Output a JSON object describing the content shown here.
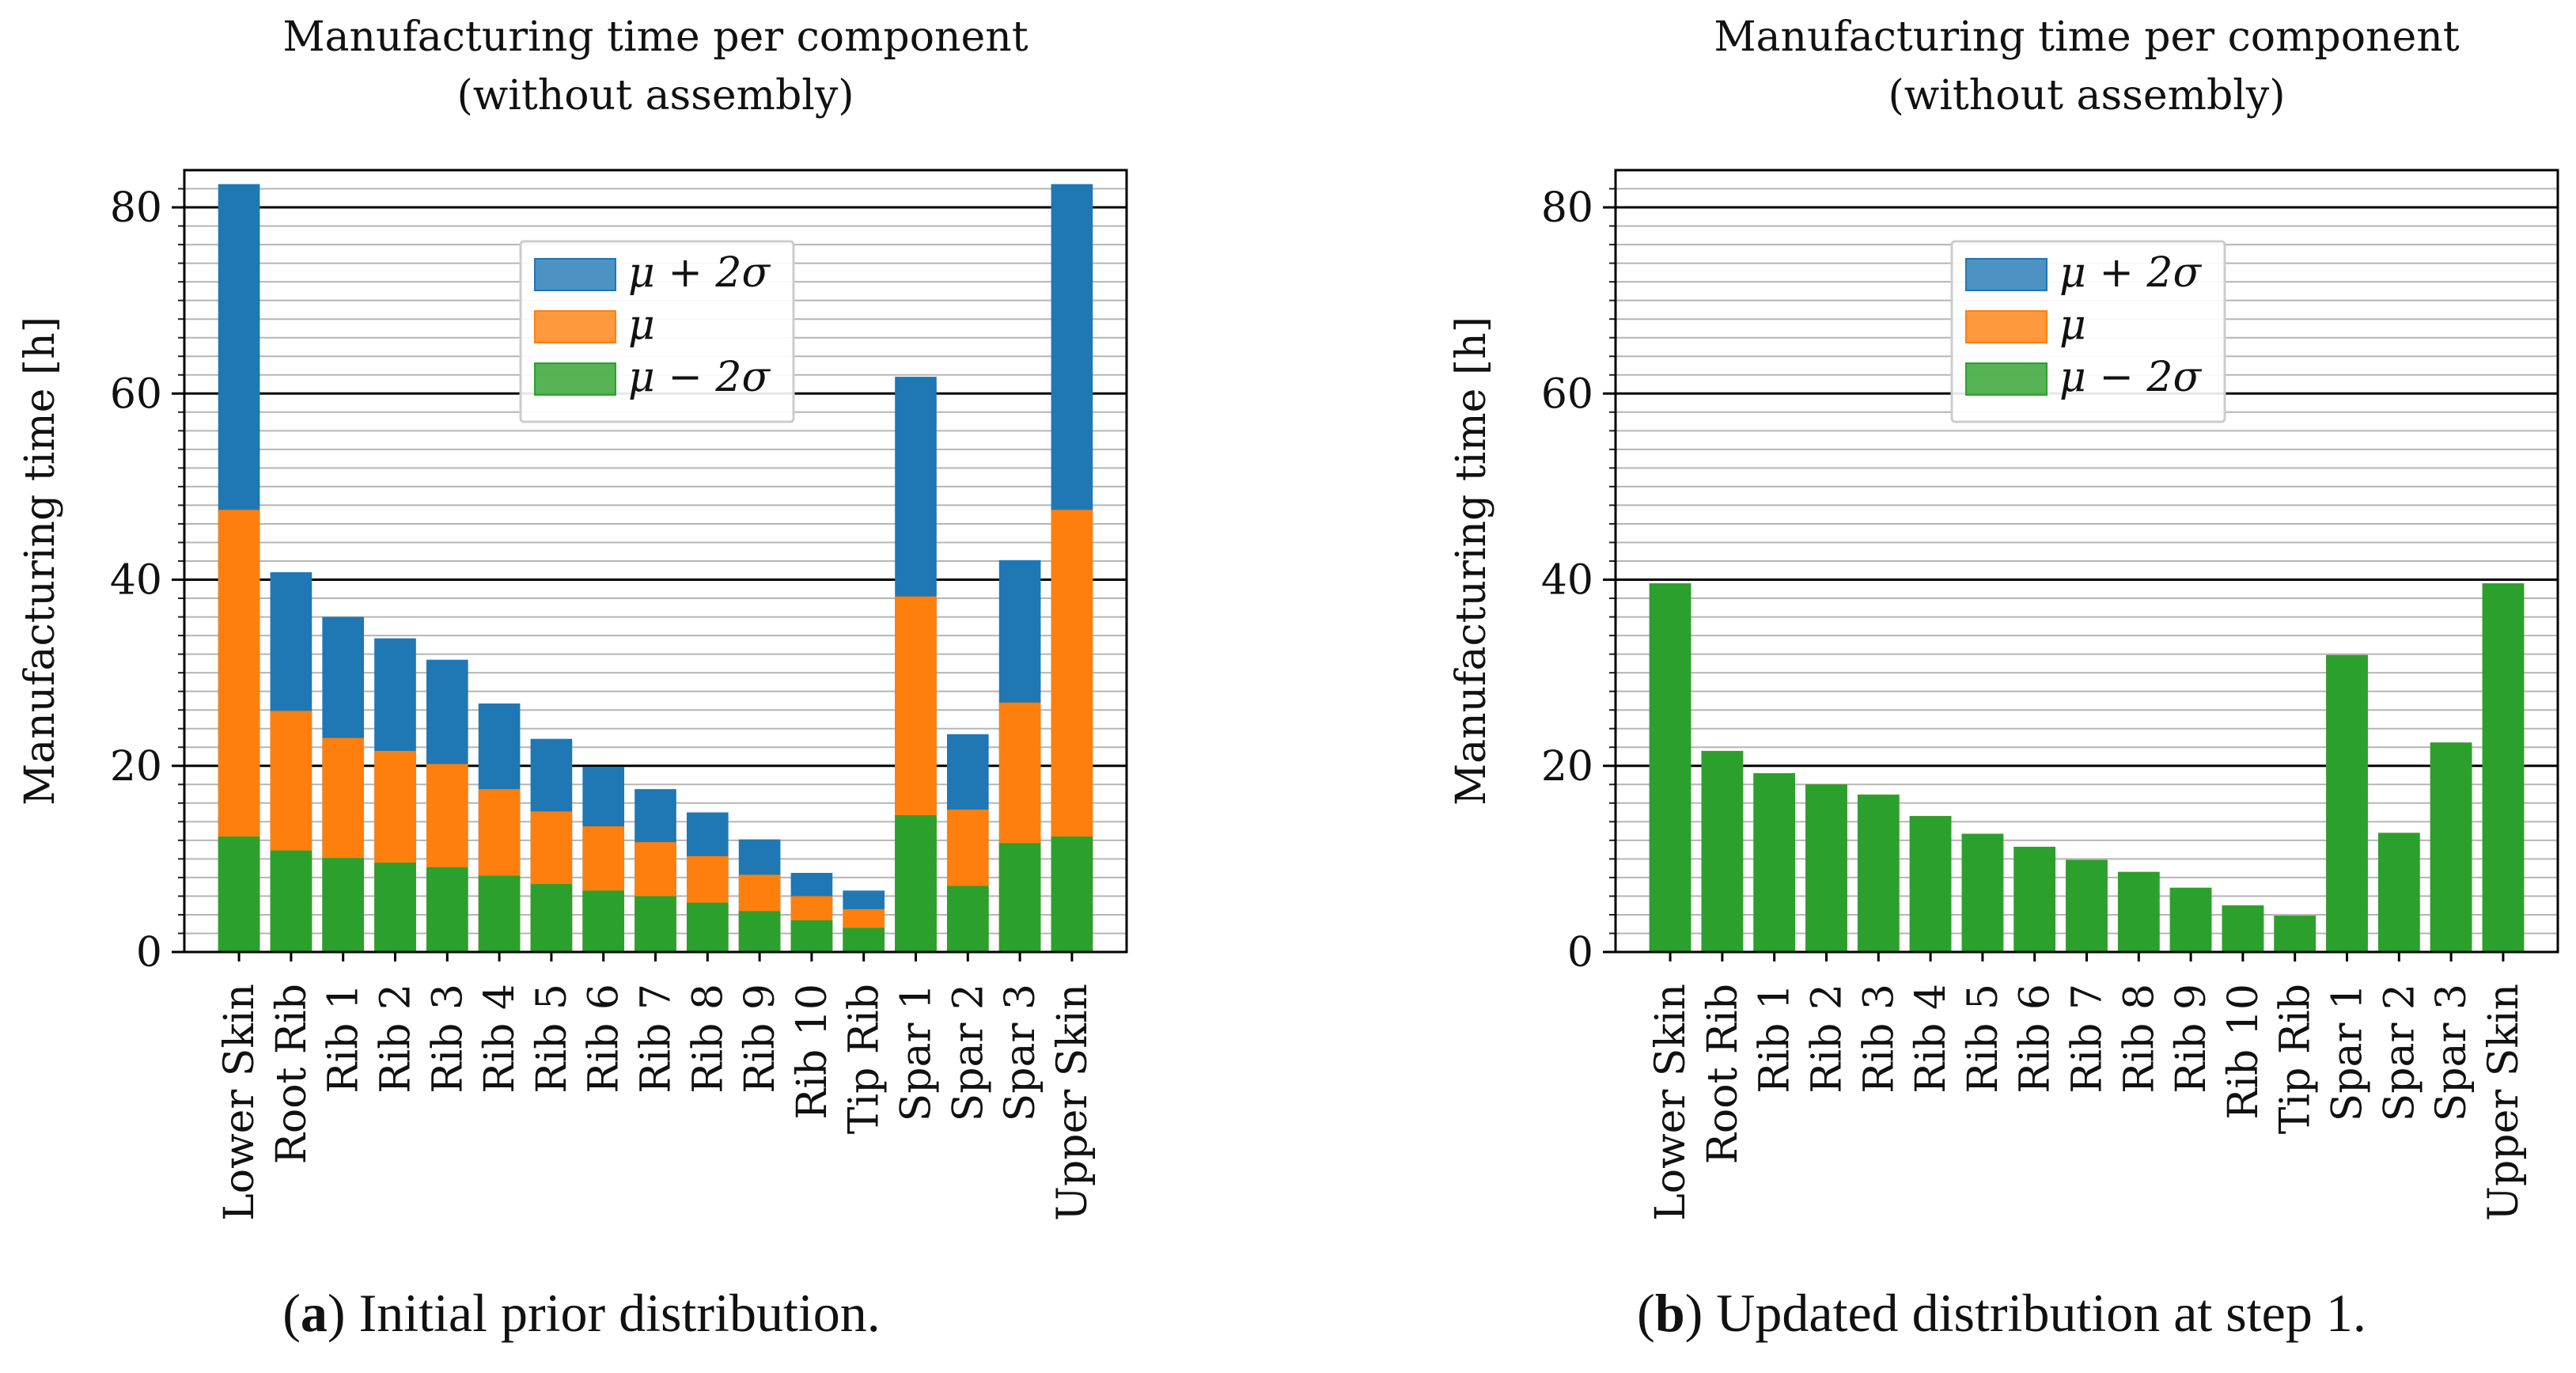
{
  "figure": {
    "panels": [
      {
        "caption_label": "a",
        "caption_text": "Initial prior distribution.",
        "chart_data": {
          "type": "bar",
          "title": "Manufacturing time per component\n(without assembly)",
          "xlabel": "",
          "ylabel": "Manufacturing time [h]",
          "ylim": [
            0,
            84
          ],
          "yticks": [
            0,
            20,
            40,
            60,
            80
          ],
          "grid": true,
          "legend_position": "upper-center",
          "categories": [
            "Lower Skin",
            "Root Rib",
            "Rib 1",
            "Rib 2",
            "Rib 3",
            "Rib 4",
            "Rib 5",
            "Rib 6",
            "Rib 7",
            "Rib 8",
            "Rib 9",
            "Rib 10",
            "Tip Rib",
            "Spar 1",
            "Spar 2",
            "Spar 3",
            "Upper Skin"
          ],
          "series": [
            {
              "name": "μ + 2σ",
              "color": "#1f77b4",
              "values": [
                82.5,
                40.8,
                36.0,
                33.7,
                31.4,
                26.7,
                22.9,
                19.9,
                17.5,
                15.0,
                12.1,
                8.5,
                6.6,
                61.8,
                23.4,
                42.1,
                82.5
              ]
            },
            {
              "name": "μ",
              "color": "#ff7f0e",
              "values": [
                47.5,
                25.9,
                23.0,
                21.6,
                20.2,
                17.5,
                15.1,
                13.5,
                11.8,
                10.3,
                8.3,
                6.0,
                4.6,
                38.2,
                15.3,
                26.8,
                47.5
              ]
            },
            {
              "name": "μ − 2σ",
              "color": "#2ca02c",
              "values": [
                12.4,
                10.9,
                10.1,
                9.6,
                9.1,
                8.2,
                7.3,
                6.6,
                6.0,
                5.3,
                4.4,
                3.4,
                2.6,
                14.7,
                7.1,
                11.7,
                12.4
              ]
            }
          ]
        }
      },
      {
        "caption_label": "b",
        "caption_text": "Updated distribution at step 1.",
        "chart_data": {
          "type": "bar",
          "title": "Manufacturing time per component\n(without assembly)",
          "xlabel": "",
          "ylabel": "Manufacturing time [h]",
          "ylim": [
            0,
            84
          ],
          "yticks": [
            0,
            20,
            40,
            60,
            80
          ],
          "grid": true,
          "legend_position": "upper-center",
          "categories": [
            "Lower Skin",
            "Root Rib",
            "Rib 1",
            "Rib 2",
            "Rib 3",
            "Rib 4",
            "Rib 5",
            "Rib 6",
            "Rib 7",
            "Rib 8",
            "Rib 9",
            "Rib 10",
            "Tip Rib",
            "Spar 1",
            "Spar 2",
            "Spar 3",
            "Upper Skin"
          ],
          "series": [
            {
              "name": "μ + 2σ",
              "color": "#1f77b4",
              "values": [
                39.6,
                21.6,
                19.2,
                18.0,
                16.9,
                14.6,
                12.7,
                11.3,
                9.9,
                8.6,
                6.9,
                5.0,
                3.9,
                31.9,
                12.8,
                22.5,
                39.6
              ]
            },
            {
              "name": "μ",
              "color": "#ff7f0e",
              "values": [
                39.6,
                21.6,
                19.2,
                18.0,
                16.9,
                14.6,
                12.7,
                11.3,
                9.9,
                8.6,
                6.9,
                5.0,
                3.9,
                31.9,
                12.8,
                22.5,
                39.6
              ]
            },
            {
              "name": "μ − 2σ",
              "color": "#2ca02c",
              "values": [
                39.6,
                21.6,
                19.2,
                18.0,
                16.9,
                14.6,
                12.7,
                11.3,
                9.9,
                8.6,
                6.9,
                5.0,
                3.9,
                31.9,
                12.8,
                22.5,
                39.6
              ]
            }
          ]
        }
      }
    ]
  }
}
